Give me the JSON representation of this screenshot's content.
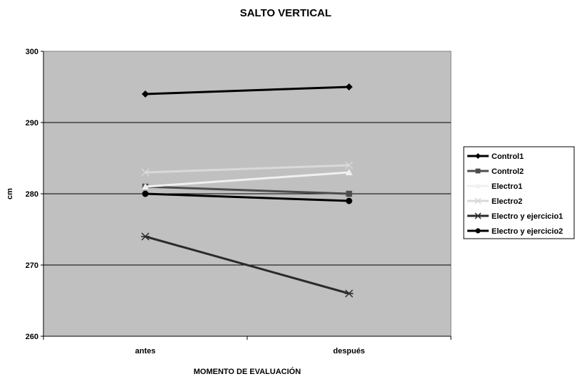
{
  "chart_data": {
    "type": "line",
    "title": "SALTO VERTICAL",
    "xlabel": "MOMENTO DE EVALUACIÓN",
    "ylabel": "cm",
    "categories": [
      "antes",
      "después"
    ],
    "ylim": [
      260,
      300
    ],
    "yticks": [
      260,
      270,
      280,
      290,
      300
    ],
    "grid": true,
    "legend_position": "right",
    "plot_background": "#c0c0c0",
    "series": [
      {
        "name": "Control1",
        "values": [
          294,
          295
        ],
        "color": "#000000",
        "marker": "diamond"
      },
      {
        "name": "Control2",
        "values": [
          281,
          280
        ],
        "color": "#4d4d4d",
        "marker": "square"
      },
      {
        "name": "Electro1",
        "values": [
          281,
          283
        ],
        "color": "#f0f0f0",
        "marker": "triangle"
      },
      {
        "name": "Electro2",
        "values": [
          283,
          284
        ],
        "color": "#d9d9d9",
        "marker": "x"
      },
      {
        "name": "Electro y ejercicio1",
        "values": [
          274,
          266
        ],
        "color": "#2b2b2b",
        "marker": "star"
      },
      {
        "name": "Electro y ejercicio2",
        "values": [
          280,
          279
        ],
        "color": "#000000",
        "marker": "circle"
      }
    ]
  }
}
